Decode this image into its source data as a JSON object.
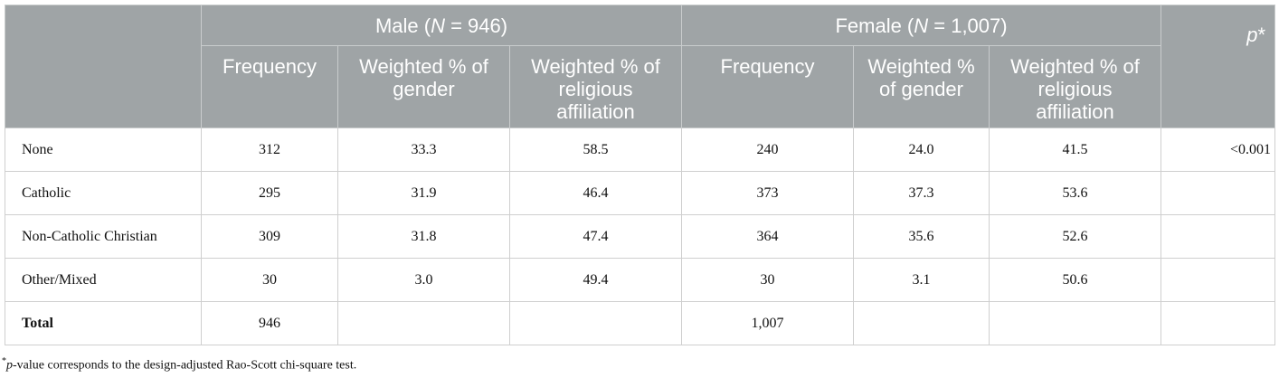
{
  "table": {
    "group_headers": [
      {
        "parts": [
          {
            "text": "Male ("
          },
          {
            "text": "N",
            "italic": true
          },
          {
            "text": " = 946)"
          }
        ]
      },
      {
        "parts": [
          {
            "text": "Female ("
          },
          {
            "text": "N",
            "italic": true
          },
          {
            "text": " = 1,007)"
          }
        ]
      }
    ],
    "p_header": {
      "parts": [
        {
          "text": "p",
          "italic": true
        },
        {
          "text": "*"
        }
      ]
    },
    "column_headers": [
      "Frequency",
      "Weighted % of gender",
      "Weighted % of religious affiliation",
      "Frequency",
      "Weighted % of gender",
      "Weighted % of religious affiliation"
    ],
    "rows": [
      [
        "None",
        "312",
        "33.3",
        "58.5",
        "240",
        "24.0",
        "41.5",
        "<0.001"
      ],
      [
        "Catholic",
        "295",
        "31.9",
        "46.4",
        "373",
        "37.3",
        "53.6",
        null
      ],
      [
        "Non-Catholic Christian",
        "309",
        "31.8",
        "47.4",
        "364",
        "35.6",
        "52.6",
        null
      ],
      [
        "Other/Mixed",
        "30",
        "3.0",
        "49.4",
        "30",
        "3.1",
        "50.6",
        null
      ],
      [
        "Total",
        "946",
        null,
        null,
        "1,007",
        null,
        null,
        null
      ]
    ],
    "footnote": {
      "parts": [
        {
          "text": "*",
          "sup": true
        },
        {
          "text": "p",
          "italic": true
        },
        {
          "text": "-value corresponds to the design-adjusted Rao-Scott chi-square test."
        }
      ]
    }
  }
}
